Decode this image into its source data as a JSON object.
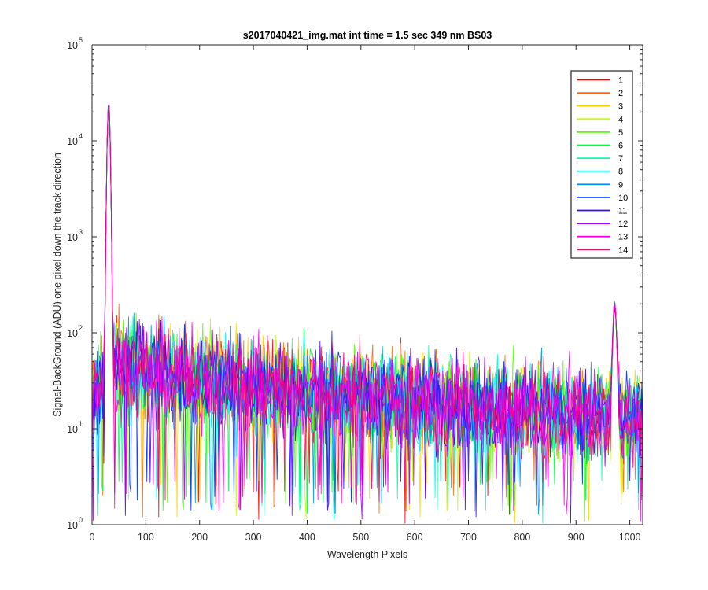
{
  "chart_data": {
    "type": "line",
    "title": "s2017040421_img.mat int time = 1.5 sec  349 nm BS03",
    "xlabel": "Wavelength Pixels",
    "ylabel": "Signal-BackGround (ADU) one pixel down the track direction",
    "xlim": [
      0,
      1024
    ],
    "ylim": [
      1,
      100000
    ],
    "yscale": "log",
    "grid": false,
    "legend_position": "top-right",
    "x_ticks": [
      "0",
      "100",
      "200",
      "300",
      "400",
      "500",
      "600",
      "700",
      "800",
      "900",
      "1000"
    ],
    "y_ticks": [
      {
        "base": "10",
        "exp": "0"
      },
      {
        "base": "10",
        "exp": "1"
      },
      {
        "base": "10",
        "exp": "2"
      },
      {
        "base": "10",
        "exp": "3"
      },
      {
        "base": "10",
        "exp": "4"
      },
      {
        "base": "10",
        "exp": "5"
      }
    ],
    "peaks": [
      {
        "x": 31,
        "y": 27000,
        "width": 3
      },
      {
        "x": 972,
        "y": 200,
        "width": 4
      }
    ],
    "baseline_profile": {
      "x": [
        0,
        30,
        50,
        100,
        150,
        200,
        300,
        400,
        500,
        600,
        700,
        800,
        900,
        950,
        1024
      ],
      "y": [
        25,
        35,
        45,
        40,
        38,
        32,
        28,
        25,
        22,
        20,
        18,
        16,
        14,
        14,
        12
      ]
    },
    "series": [
      {
        "name": "1",
        "color": "#ff0000"
      },
      {
        "name": "2",
        "color": "#ff6a00"
      },
      {
        "name": "3",
        "color": "#ffd500"
      },
      {
        "name": "4",
        "color": "#bfff00"
      },
      {
        "name": "5",
        "color": "#55ff00"
      },
      {
        "name": "6",
        "color": "#00ff40"
      },
      {
        "name": "7",
        "color": "#00ffaa"
      },
      {
        "name": "8",
        "color": "#00ffff"
      },
      {
        "name": "9",
        "color": "#0095ff"
      },
      {
        "name": "10",
        "color": "#002bff"
      },
      {
        "name": "11",
        "color": "#4000ff"
      },
      {
        "name": "12",
        "color": "#aa00ff"
      },
      {
        "name": "13",
        "color": "#ff00ea"
      },
      {
        "name": "14",
        "color": "#ff0080"
      }
    ]
  }
}
